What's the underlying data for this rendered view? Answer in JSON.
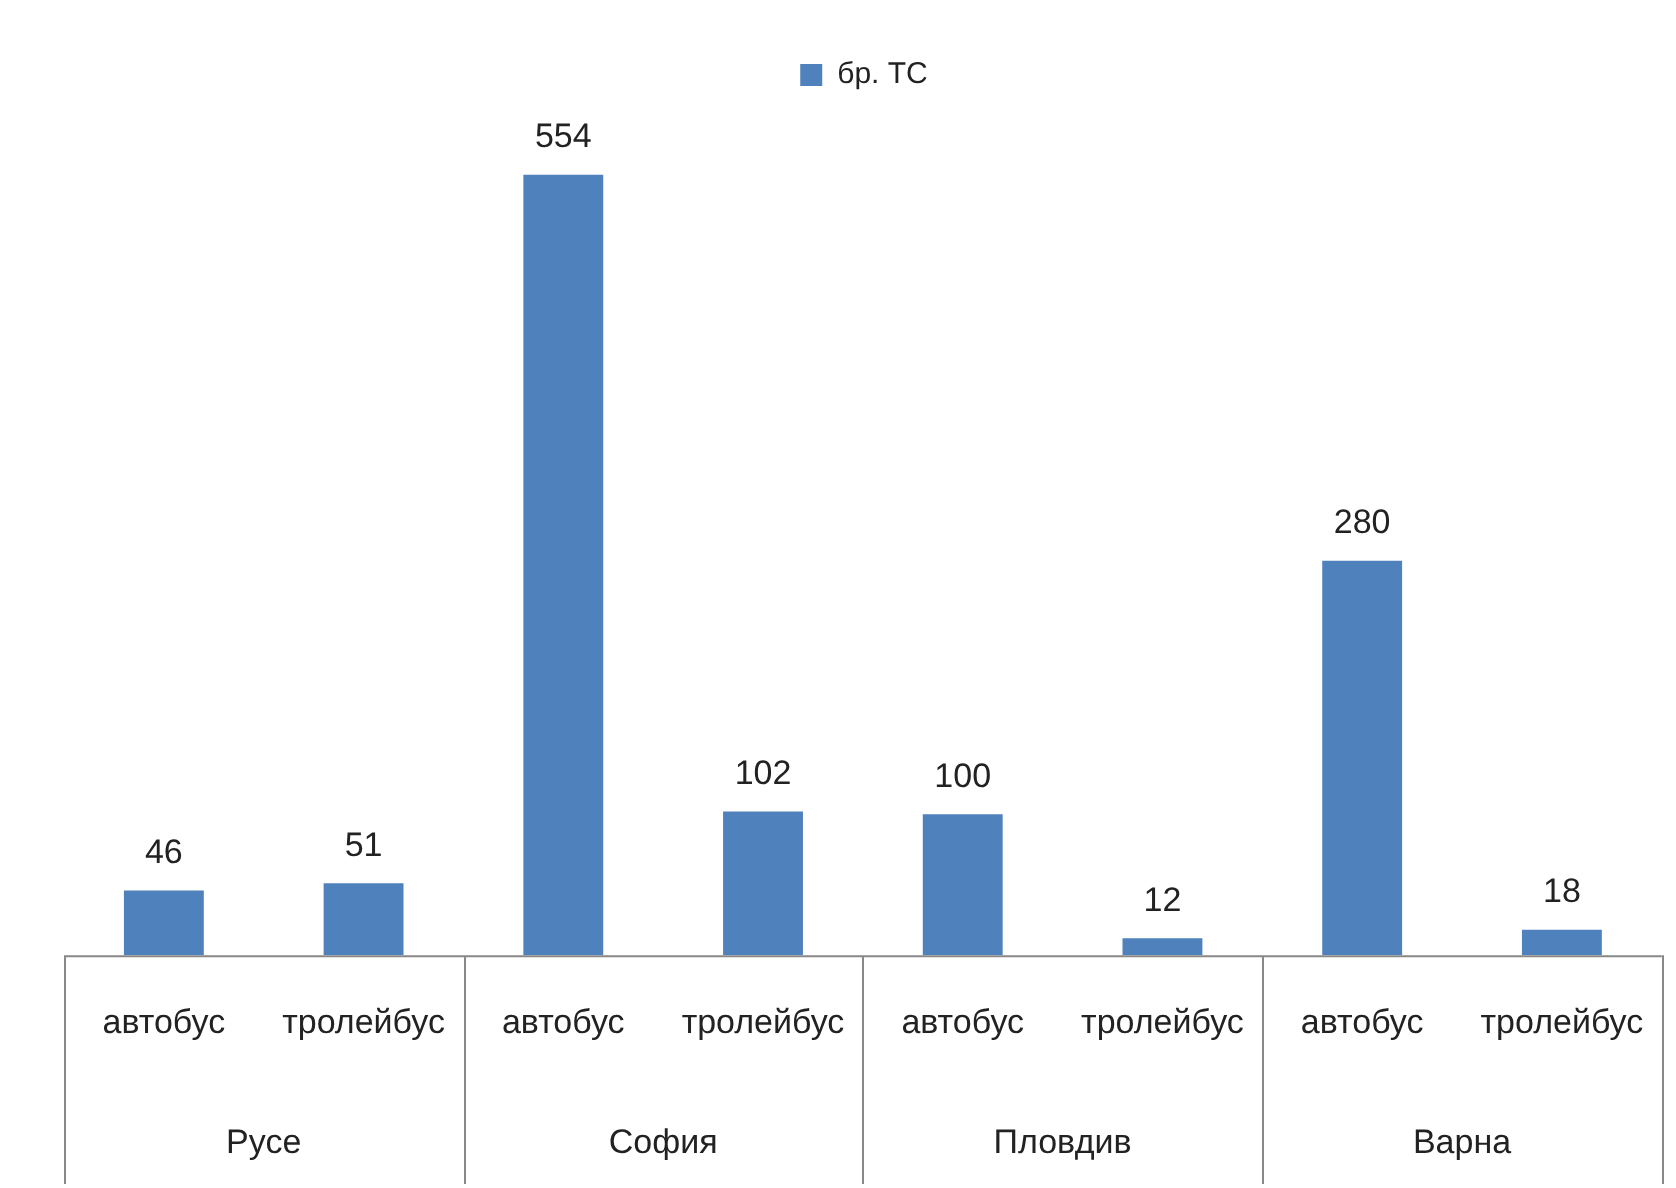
{
  "chart_data": {
    "type": "bar",
    "categories": [
      "автобус",
      "тролейбус",
      "автобус",
      "тролейбус",
      "автобус",
      "тролейбус",
      "автобус",
      "тролейбус"
    ],
    "series": [
      {
        "name": "бр. ТС",
        "color": "#4f81bd",
        "values": [
          46,
          51,
          554,
          102,
          100,
          12,
          280,
          18
        ]
      }
    ],
    "annotations": [
      "Русе",
      "София",
      "Пловдив",
      "Варна"
    ],
    "data_labels": true,
    "legend": "top"
  }
}
